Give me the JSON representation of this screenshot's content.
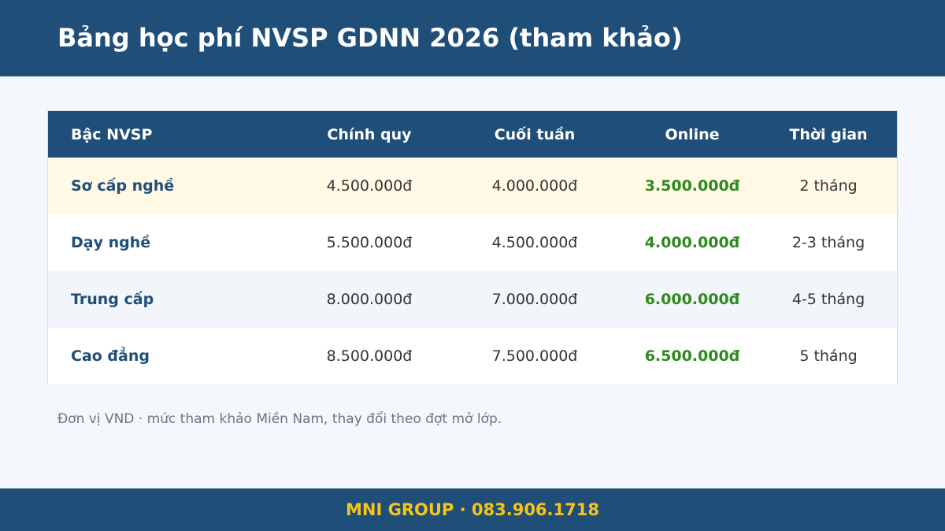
{
  "header": {
    "title": "Bảng học phí NVSP GDNN 2026 (tham khảo)"
  },
  "table": {
    "columns": [
      "Bậc NVSP",
      "Chính quy",
      "Cuối tuần",
      "Online",
      "Thời gian"
    ],
    "rows": [
      {
        "level": "Sơ cấp nghề",
        "regular": "4.500.000đ",
        "weekend": "4.000.000đ",
        "online": "3.500.000đ",
        "duration": "2 tháng"
      },
      {
        "level": "Dạy nghề",
        "regular": "5.500.000đ",
        "weekend": "4.500.000đ",
        "online": "4.000.000đ",
        "duration": "2-3 tháng"
      },
      {
        "level": "Trung cấp",
        "regular": "8.000.000đ",
        "weekend": "7.000.000đ",
        "online": "6.000.000đ",
        "duration": "4-5 tháng"
      },
      {
        "level": "Cao đẳng",
        "regular": "8.500.000đ",
        "weekend": "7.500.000đ",
        "online": "6.500.000đ",
        "duration": "5 tháng"
      }
    ]
  },
  "note": "Đơn vị VND · mức tham khảo Miền Nam, thay đổi theo đợt mở lớp.",
  "footer": {
    "text": "MNI GROUP · 083.906.1718"
  },
  "colors": {
    "primary": "#1f4e78",
    "highlight_row": "#fff9e6",
    "online_price": "#2e8b1f",
    "footer_text": "#f5c518"
  }
}
